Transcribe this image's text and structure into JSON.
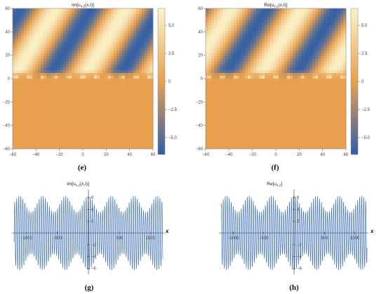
{
  "chart_data": [
    {
      "type": "heatmap",
      "panel": "e",
      "caption": "(e)",
      "title": "Im[u_{4,2}(x,t)]",
      "title_main": "Im[u",
      "title_sub": "4,2",
      "title_tail": "(x,t)]",
      "x_ticks": [
        -60,
        -40,
        -20,
        0,
        20,
        40,
        60
      ],
      "y_ticks": [
        60,
        40,
        20,
        0,
        -20,
        -40,
        -60
      ],
      "xlim": [
        -60,
        60
      ],
      "ylim": [
        -60,
        60
      ],
      "colorbar": {
        "ticks": [
          5.0,
          2.5,
          0,
          -2.5,
          -5.0
        ],
        "labels": [
          "5.0",
          "2.5",
          "0",
          "−2.5",
          "−5.0"
        ],
        "range": [
          -6.5,
          6.5
        ]
      },
      "colors": {
        "low": "#2f5fa8",
        "mid": "#e8a050",
        "high": "#fbf2c8"
      }
    },
    {
      "type": "heatmap",
      "panel": "f",
      "caption": "(f)",
      "title": "Re[u_{4,2}(x,t)]",
      "title_main": "Re[u",
      "title_sub": "4,2",
      "title_tail": "(x,t)]",
      "x_ticks": [
        -60,
        -40,
        -20,
        0,
        20,
        40,
        60
      ],
      "y_ticks": [
        60,
        40,
        20,
        0,
        -20,
        -40,
        -60
      ],
      "xlim": [
        -60,
        60
      ],
      "ylim": [
        -60,
        60
      ],
      "colorbar": {
        "ticks": [
          5.0,
          2.5,
          0,
          -2.5,
          -5.0
        ],
        "labels": [
          "5.0",
          "2.5",
          "0",
          "−2.5",
          "−5.0"
        ],
        "range": [
          -6.5,
          6.5
        ]
      },
      "colors": {
        "low": "#2f5fa8",
        "mid": "#e8a050",
        "high": "#fbf2c8"
      }
    },
    {
      "type": "line",
      "panel": "g",
      "caption": "(g)",
      "title_main": "Im[u",
      "title_sub": "4,2",
      "title_tail": "(x,t)]",
      "xlabel": "x",
      "x_ticks": [
        -1000,
        -500,
        500,
        1000
      ],
      "x_tick_labels": [
        "−1000",
        "−500",
        "500",
        "1000"
      ],
      "y_ticks": [
        6,
        4,
        2,
        -2,
        -4,
        -6
      ],
      "y_tick_labels": [
        "6",
        "4",
        "2",
        "−2",
        "−4",
        "−6"
      ],
      "xlim": [
        -1200,
        1200
      ],
      "ylim": [
        -7,
        7
      ],
      "line_color": "#4a78b8"
    },
    {
      "type": "line",
      "panel": "h",
      "caption": "(h)",
      "title_main": "Re[u",
      "title_sub": "4,2",
      "title_tail": "]",
      "xlabel": "x",
      "x_ticks": [
        -1000,
        -500,
        500,
        1000
      ],
      "x_tick_labels": [
        "−1000",
        "−500",
        "500",
        "1000"
      ],
      "y_ticks": [
        6,
        4,
        2,
        -2,
        -4,
        -6
      ],
      "y_tick_labels": [
        "6",
        "4",
        "2",
        "−2",
        "−4",
        "−6"
      ],
      "xlim": [
        -1200,
        1200
      ],
      "ylim": [
        -7,
        7
      ],
      "line_color": "#4a78b8"
    }
  ]
}
